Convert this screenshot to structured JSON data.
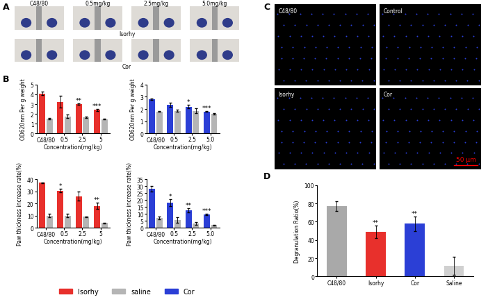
{
  "panel_labels": [
    "A",
    "B",
    "C",
    "D"
  ],
  "panel_A": {
    "column_labels": [
      "C48/80",
      "0.5mg/kg",
      "2.5mg/kg",
      "5.0mg/kg"
    ],
    "row_labels": [
      "Isorhy",
      "Cor"
    ]
  },
  "panel_C": {
    "image_labels": [
      "C48/80",
      "Control",
      "Isorhy",
      "Cor"
    ],
    "scale_bar": "50 μm"
  },
  "chart_data": [
    {
      "type": "bar",
      "categories": [
        "C48/80",
        "0.5",
        "2.5",
        "5"
      ],
      "y_label": "OD620nm Per g weight",
      "x_label": "Concentration(mg/kg)",
      "ylim": [
        0,
        5
      ],
      "yticks": [
        0,
        1,
        2,
        3,
        4,
        5
      ],
      "legend": "lower center",
      "series": [
        {
          "name": "Isorhy",
          "color": "#e8302c",
          "values": [
            4.1,
            3.25,
            3.0,
            2.4
          ],
          "errors": [
            0.15,
            0.6,
            0.05,
            0.1
          ],
          "annotations": [
            null,
            null,
            "**",
            "***"
          ]
        },
        {
          "name": "saline",
          "color": "#b5b5b5",
          "values": [
            1.5,
            1.75,
            1.65,
            1.45
          ],
          "errors": [
            0.05,
            0.15,
            0.05,
            0.05
          ]
        }
      ]
    },
    {
      "type": "bar",
      "categories": [
        "C48/80",
        "0.5",
        "2.5",
        "5.0"
      ],
      "y_label": "OD620nm Per g weight",
      "x_label": "Concentration(mg/kg)",
      "ylim": [
        0,
        4
      ],
      "yticks": [
        0,
        1,
        2,
        3,
        4
      ],
      "legend": "lower center",
      "series": [
        {
          "name": "Cor",
          "color": "#2b3fd6",
          "values": [
            2.8,
            2.35,
            2.2,
            1.8
          ],
          "errors": [
            0.08,
            0.15,
            0.12,
            0.05
          ],
          "annotations": [
            null,
            null,
            "*",
            "***"
          ]
        },
        {
          "name": "saline",
          "color": "#b5b5b5",
          "values": [
            1.8,
            1.85,
            1.85,
            1.6
          ],
          "errors": [
            0.03,
            0.1,
            0.2,
            0.05
          ]
        }
      ]
    },
    {
      "type": "bar",
      "categories": [
        "C48/80",
        "0.5",
        "2.5",
        "5"
      ],
      "y_label": "Paw thickness increase rate(%)",
      "x_label": "Concentration(mg/kg)",
      "ylim": [
        0,
        40
      ],
      "yticks": [
        0,
        10,
        20,
        30,
        40
      ],
      "legend": "lower center",
      "series": [
        {
          "name": "Isorhy",
          "color": "#e8302c",
          "values": [
            37,
            30.5,
            26,
            18
          ],
          "errors": [
            0.3,
            1.5,
            3.5,
            2.5
          ],
          "annotations": [
            null,
            "*",
            null,
            "**"
          ]
        },
        {
          "name": "saline",
          "color": "#b5b5b5",
          "values": [
            10,
            10,
            9,
            4
          ],
          "errors": [
            1.5,
            1.5,
            0.5,
            0.3
          ]
        }
      ]
    },
    {
      "type": "bar",
      "categories": [
        "C48/80",
        "0.5",
        "2.5",
        "5.0"
      ],
      "y_label": "Paw thickness increase rate(%)",
      "x_label": "Concentration(mg/kg)",
      "ylim": [
        0,
        35
      ],
      "yticks": [
        0,
        5,
        10,
        15,
        20,
        25,
        30,
        35
      ],
      "legend": "lower center",
      "series": [
        {
          "name": "Cor",
          "color": "#2b3fd6",
          "values": [
            28,
            18,
            12.5,
            9.5
          ],
          "errors": [
            2,
            2.5,
            1.5,
            0.5
          ],
          "annotations": [
            null,
            "*",
            "**",
            "***"
          ]
        },
        {
          "name": "saline",
          "color": "#b5b5b5",
          "values": [
            7,
            5.5,
            3,
            2
          ],
          "errors": [
            1,
            2,
            1,
            0.3
          ]
        }
      ]
    },
    {
      "type": "bar",
      "categories": [
        "C48/80",
        "Isorhy",
        "Cor",
        "Saline"
      ],
      "y_label": "Degranulation Ratio(%)",
      "ylim": [
        0,
        100
      ],
      "yticks": [
        0,
        20,
        40,
        60,
        80,
        100
      ],
      "series": [
        {
          "colors": [
            "#a9a9a9",
            "#e8302c",
            "#2b3fd6",
            "#d0d0d0"
          ],
          "values": [
            77,
            49,
            58,
            12
          ],
          "errors": [
            5,
            7,
            8,
            10
          ],
          "annotations": [
            null,
            "**",
            "**",
            null
          ]
        }
      ]
    }
  ]
}
